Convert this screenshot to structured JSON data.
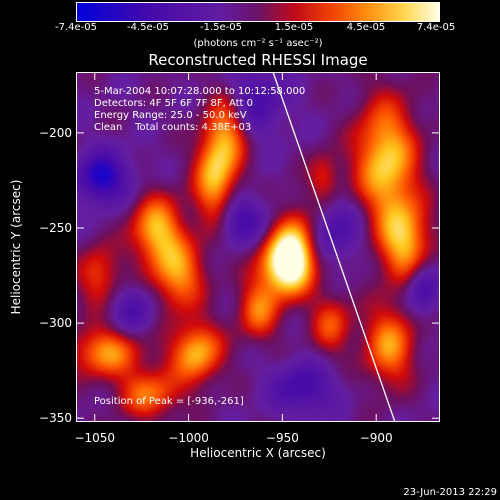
{
  "colorbar": {
    "ticks": [
      "-7.4e-05",
      "-4.5e-05",
      "-1.5e-05",
      "1.5e-05",
      "4.5e-05",
      "7.4e-05"
    ],
    "units": "(photons cm⁻² s⁻¹ asec⁻²)"
  },
  "chart_data": {
    "type": "heatmap",
    "title": "Reconstructed RHESSI Image",
    "xlabel": "Heliocentric X (arcsec)",
    "ylabel": "Heliocentric Y (arcsec)",
    "xlim": [
      -1060,
      -866
    ],
    "ylim": [
      -352,
      -168
    ],
    "xticks": [
      "−1050",
      "−1000",
      "−950",
      "−900"
    ],
    "xtick_values": [
      -1050,
      -1000,
      -950,
      -900
    ],
    "yticks": [
      "−200",
      "−250",
      "−300",
      "−350"
    ],
    "ytick_values": [
      -200,
      -250,
      -300,
      -350
    ],
    "colorbar_range": [
      -7.4e-05,
      7.4e-05
    ],
    "annotations": [
      "5-Mar-2004 10:07:28.000 to 10:12:58.000",
      "Detectors: 4F 5F 6F 7F 8F, Att 0",
      "Energy Range: 25.0 - 50.0 keV",
      "Clean    Total counts: 4.38E+03"
    ],
    "peak_label": "Position of Peak = [-936,-261]",
    "peak": [
      -936,
      -261
    ],
    "minimum": [
      -1040,
      -218
    ],
    "limb_line": [
      [
        -955,
        -168
      ],
      [
        -890,
        -352
      ]
    ]
  },
  "footer": {
    "date": "23-Jun-2013 22:29"
  }
}
